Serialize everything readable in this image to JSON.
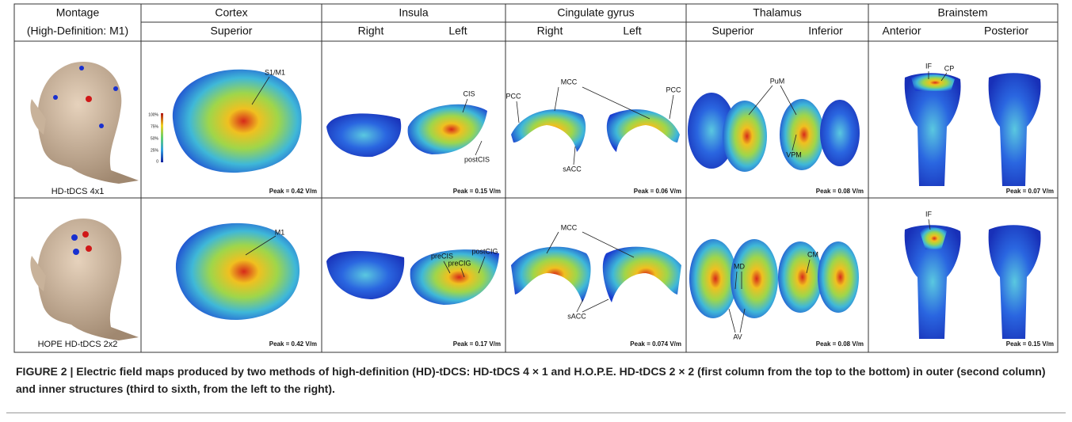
{
  "table": {
    "header": {
      "montage": [
        "Montage",
        "(High-Definition: M1)"
      ],
      "columns": [
        {
          "title": "Cortex",
          "views": [
            "Superior"
          ]
        },
        {
          "title": "Insula",
          "views": [
            "Right",
            "Left"
          ]
        },
        {
          "title": "Cingulate gyrus",
          "views": [
            "Right",
            "Left"
          ]
        },
        {
          "title": "Thalamus",
          "views": [
            "Superior",
            "Inferior"
          ]
        },
        {
          "title": "Brainstem",
          "views": [
            "Anterior",
            "Posterior"
          ]
        }
      ]
    },
    "rows": [
      {
        "label": "HD-tDCS 4x1",
        "cells": [
          {
            "peak": "Peak = 0.42 V/m",
            "annotations": [
              "S1/M1"
            ]
          },
          {
            "peak": "Peak = 0.15 V/m",
            "annotations": [
              "CIS",
              "postCIS"
            ]
          },
          {
            "peak": "Peak = 0.06 V/m",
            "annotations": [
              "PCC",
              "MCC",
              "PCC",
              "sACC"
            ]
          },
          {
            "peak": "Peak = 0.08 V/m",
            "annotations": [
              "PuM",
              "VPM"
            ]
          },
          {
            "peak": "Peak = 0.07 V/m",
            "annotations": [
              "IF",
              "CP"
            ]
          }
        ]
      },
      {
        "label": "HOPE HD-tDCS 2x2",
        "cells": [
          {
            "peak": "Peak = 0.42 V/m",
            "annotations": [
              "M1"
            ]
          },
          {
            "peak": "Peak = 0.17 V/m",
            "annotations": [
              "preCIS",
              "preCIG",
              "postCIG"
            ]
          },
          {
            "peak": "Peak = 0.074 V/m",
            "annotations": [
              "MCC",
              "sACC"
            ]
          },
          {
            "peak": "Peak = 0.08 V/m",
            "annotations": [
              "MD",
              "CM",
              "AV"
            ]
          },
          {
            "peak": "Peak = 0.15 V/m",
            "annotations": [
              "IF"
            ]
          }
        ]
      }
    ],
    "colorbar": [
      "100%",
      "75%",
      "50%",
      "25%",
      "0"
    ]
  },
  "caption": "FIGURE 2 | Electric field maps produced by two methods of high-definition (HD)-tDCS: HD-tDCS 4 × 1 and H.O.P.E. HD-tDCS 2 × 2 (first column from the top to the bottom) in outer (second column) and inner structures (third to sixth, from the left to the right)."
}
